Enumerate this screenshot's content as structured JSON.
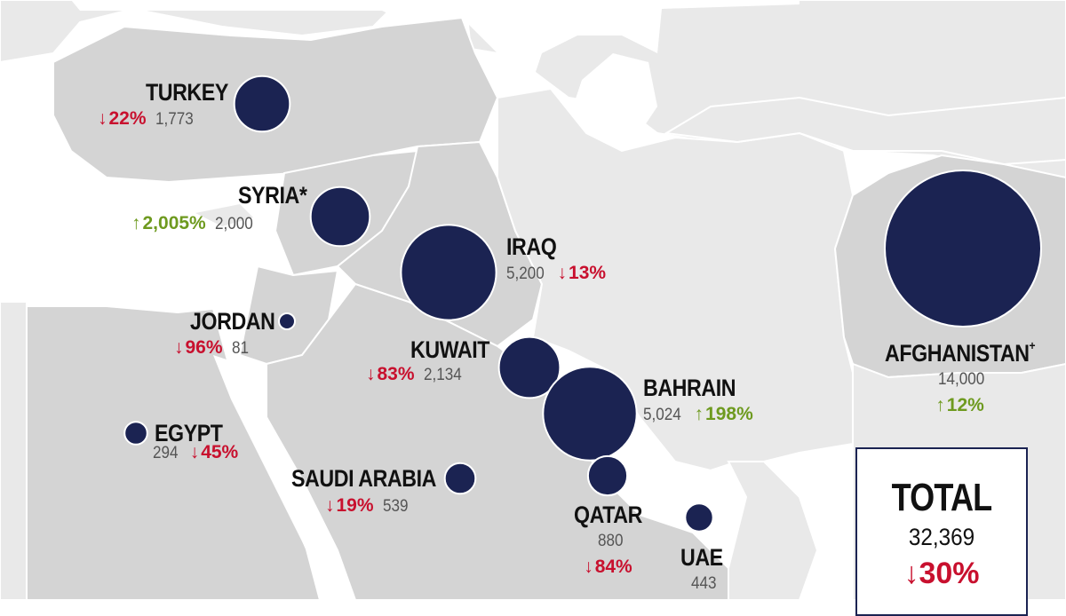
{
  "colors": {
    "land_shaded": "#d4d4d4",
    "land_other": "#e9e9e9",
    "sea": "#ffffff",
    "border": "#ffffff",
    "bubble": "#1b2352",
    "down": "#c8102e",
    "up": "#6e9a1f"
  },
  "countries": [
    {
      "id": "turkey",
      "name": "TURKEY",
      "sup": "",
      "count": "1,773",
      "change": "22%",
      "direction": "down",
      "value": 1773
    },
    {
      "id": "syria",
      "name": "SYRIA*",
      "sup": "",
      "count": "2,000",
      "change": "2,005%",
      "direction": "up",
      "value": 2000
    },
    {
      "id": "iraq",
      "name": "IRAQ",
      "sup": "",
      "count": "5,200",
      "change": "13%",
      "direction": "down",
      "value": 5200
    },
    {
      "id": "jordan",
      "name": "JORDAN",
      "sup": "",
      "count": "81",
      "change": "96%",
      "direction": "down",
      "value": 81
    },
    {
      "id": "kuwait",
      "name": "KUWAIT",
      "sup": "",
      "count": "2,134",
      "change": "83%",
      "direction": "down",
      "value": 2134
    },
    {
      "id": "bahrain",
      "name": "BAHRAIN",
      "sup": "",
      "count": "5,024",
      "change": "198%",
      "direction": "up",
      "value": 5024
    },
    {
      "id": "egypt",
      "name": "EGYPT",
      "sup": "",
      "count": "294",
      "change": "45%",
      "direction": "down",
      "value": 294
    },
    {
      "id": "saudi",
      "name": "SAUDI ARABIA",
      "sup": "",
      "count": "539",
      "change": "19%",
      "direction": "down",
      "value": 539
    },
    {
      "id": "qatar",
      "name": "QATAR",
      "sup": "",
      "count": "880",
      "change": "84%",
      "direction": "down",
      "value": 880
    },
    {
      "id": "uae",
      "name": "UAE",
      "sup": "",
      "count": "443",
      "change": "",
      "direction": "down",
      "value": 443
    },
    {
      "id": "afghanistan",
      "name": "AFGHANISTAN",
      "sup": "+",
      "count": "14,000",
      "change": "12%",
      "direction": "up",
      "value": 14000
    }
  ],
  "total": {
    "title": "TOTAL",
    "count": "32,369",
    "change": "30%",
    "direction": "down"
  },
  "arrows": {
    "down": "↓",
    "up": "↑"
  }
}
